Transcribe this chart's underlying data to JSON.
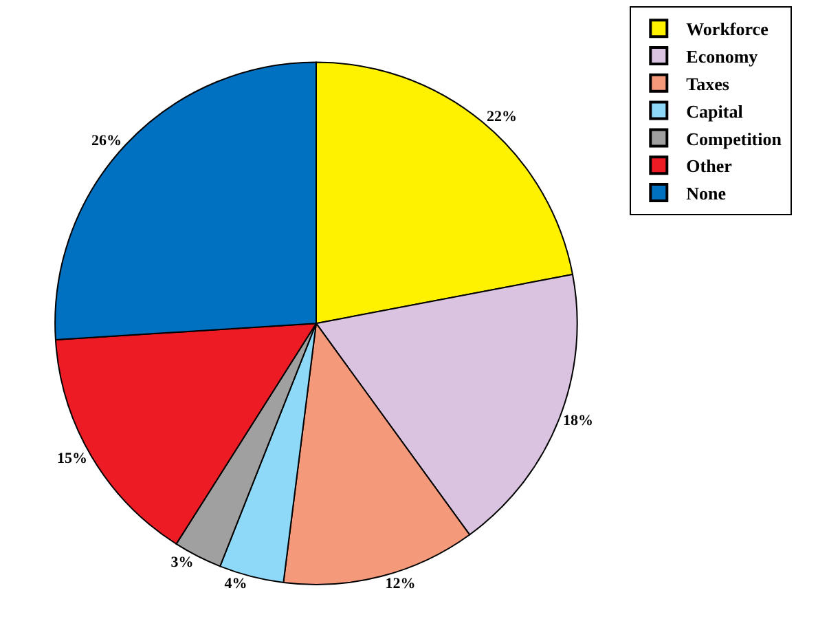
{
  "chart_data": {
    "type": "pie",
    "categories": [
      "Workforce",
      "Economy",
      "Taxes",
      "Capital",
      "Competition",
      "Other",
      "None"
    ],
    "values": [
      22,
      18,
      12,
      4,
      3,
      15,
      26
    ],
    "value_labels": [
      "22%",
      "18%",
      "12%",
      "4%",
      "3%",
      "15%",
      "26%"
    ],
    "colors": [
      "#fff200",
      "#d9c3e0",
      "#f4997a",
      "#8ed8f8",
      "#a0a0a0",
      "#ed1c24",
      "#0070c0"
    ],
    "legend": "top right"
  }
}
